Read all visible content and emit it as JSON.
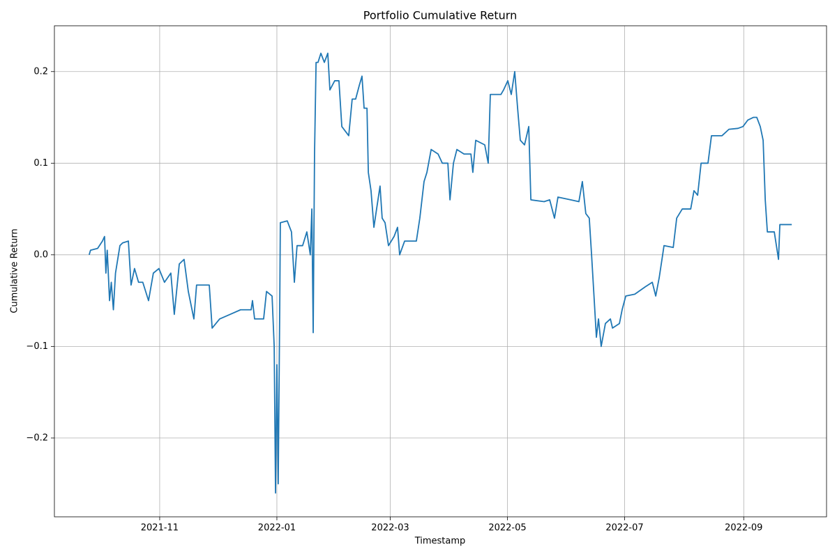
{
  "chart_data": {
    "type": "line",
    "title": "Portfolio Cumulative Return",
    "x_label": "Timestamp",
    "y_label": "Cumulative Return",
    "grid": true,
    "xlim": [
      18877.2,
      19279.1
    ],
    "ylim": [
      -0.286,
      0.25
    ],
    "xticks": [
      {
        "value": 18932,
        "label": "2021-11"
      },
      {
        "value": 18993,
        "label": "2022-01"
      },
      {
        "value": 19052,
        "label": "2022-03"
      },
      {
        "value": 19113,
        "label": "2022-05"
      },
      {
        "value": 19174,
        "label": "2022-07"
      },
      {
        "value": 19236,
        "label": "2022-09"
      }
    ],
    "yticks": [
      {
        "value": -0.2,
        "label": "−0.2"
      },
      {
        "value": -0.1,
        "label": "−0.1"
      },
      {
        "value": 0,
        "label": "0.0"
      },
      {
        "value": 0.1,
        "label": "0.1"
      },
      {
        "value": 0.2,
        "label": "0.2"
      }
    ],
    "x": [
      18895.3,
      18896.0,
      18899.7,
      18902.2,
      18903.3,
      18904.0,
      18904.7,
      18905.9,
      18906.8,
      18907.9,
      18909.0,
      18911.3,
      18912.7,
      18915.7,
      18917.1,
      18918.9,
      18921.0,
      18923.2,
      18926.2,
      18928.7,
      18931.6,
      18934.5,
      18937.8,
      18939.6,
      18942.2,
      18944.7,
      18946.9,
      18949.8,
      18951.2,
      18957.8,
      18959.3,
      18963.2,
      18968.7,
      18974.1,
      18979.6,
      18980.3,
      18981.4,
      18986.1,
      18987.6,
      18990.5,
      18991.6,
      18992.3,
      18993.0,
      18993.7,
      18994.5,
      18994.8,
      18998.4,
      19000.6,
      19002.1,
      19003.5,
      19006.4,
      19008.6,
      19010.4,
      19011.2,
      19011.9,
      19012.6,
      19013.4,
      19014.4,
      19015.9,
      19017.7,
      19019.5,
      19020.6,
      19023.1,
      19025.3,
      19026.8,
      19030.4,
      19032.2,
      19034.0,
      19035.9,
      19037.3,
      19038.4,
      19039.9,
      19040.6,
      19042.0,
      19043.5,
      19044.9,
      19046.7,
      19047.8,
      19049.3,
      19051.1,
      19054.0,
      19055.8,
      19056.9,
      19059.5,
      19065.6,
      19067.4,
      19069.6,
      19071.1,
      19073.3,
      19076.9,
      19079.1,
      19082.0,
      19083.1,
      19084.9,
      19086.7,
      19090.4,
      19094.0,
      19095.0,
      19096.5,
      19101.2,
      19103.0,
      19104.1,
      19109.6,
      19111.0,
      19113.2,
      19115.0,
      19116.8,
      19118.3,
      19119.7,
      19121.9,
      19124.1,
      19125.2,
      19132.1,
      19135.0,
      19137.5,
      19139.3,
      19145.9,
      19150.2,
      19152.0,
      19153.8,
      19155.6,
      19156.8,
      19158.2,
      19159.3,
      19160.4,
      19161.8,
      19164.0,
      19166.6,
      19167.7,
      19171.3,
      19172.7,
      19174.6,
      19179.3,
      19184.7,
      19188.4,
      19190.2,
      19192.0,
      19193.8,
      19194.5,
      19199.3,
      19201.1,
      19204.0,
      19208.4,
      19210.1,
      19212.0,
      19213.8,
      19217.4,
      19219.2,
      19224.7,
      19228.3,
      19233.0,
      19235.6,
      19238.1,
      19241.0,
      19242.8,
      19244.6,
      19246.1,
      19247.2,
      19248.3,
      19251.9,
      19254.1,
      19254.8,
      19261.0
    ],
    "series": [
      {
        "name": "Cumulative Return",
        "color": "#1f77b4",
        "values": [
          0.0,
          0.005,
          0.007,
          0.015,
          0.02,
          -0.02,
          0.005,
          -0.05,
          -0.03,
          -0.06,
          -0.02,
          0.01,
          0.013,
          0.015,
          -0.033,
          -0.015,
          -0.03,
          -0.03,
          -0.05,
          -0.02,
          -0.015,
          -0.03,
          -0.02,
          -0.065,
          -0.01,
          -0.005,
          -0.04,
          -0.07,
          -0.033,
          -0.033,
          -0.08,
          -0.07,
          -0.065,
          -0.06,
          -0.06,
          -0.05,
          -0.07,
          -0.07,
          -0.04,
          -0.045,
          -0.1,
          -0.26,
          -0.12,
          -0.25,
          -0.055,
          0.035,
          0.037,
          0.025,
          -0.03,
          0.01,
          0.01,
          0.025,
          0.0,
          0.05,
          -0.085,
          0.11,
          0.21,
          0.21,
          0.22,
          0.21,
          0.22,
          0.18,
          0.19,
          0.19,
          0.14,
          0.13,
          0.17,
          0.17,
          0.185,
          0.195,
          0.16,
          0.16,
          0.09,
          0.07,
          0.03,
          0.05,
          0.075,
          0.04,
          0.035,
          0.01,
          0.02,
          0.03,
          0.0,
          0.015,
          0.015,
          0.04,
          0.08,
          0.09,
          0.115,
          0.11,
          0.1,
          0.1,
          0.06,
          0.1,
          0.115,
          0.11,
          0.11,
          0.09,
          0.125,
          0.12,
          0.1,
          0.175,
          0.175,
          0.18,
          0.19,
          0.175,
          0.2,
          0.16,
          0.125,
          0.12,
          0.14,
          0.06,
          0.058,
          0.06,
          0.04,
          0.063,
          0.06,
          0.058,
          0.08,
          0.045,
          0.04,
          0.0,
          -0.05,
          -0.09,
          -0.07,
          -0.1,
          -0.075,
          -0.07,
          -0.08,
          -0.075,
          -0.06,
          -0.045,
          -0.043,
          -0.035,
          -0.03,
          -0.045,
          -0.025,
          0.0,
          0.01,
          0.008,
          0.04,
          0.05,
          0.05,
          0.07,
          0.065,
          0.1,
          0.1,
          0.13,
          0.13,
          0.137,
          0.138,
          0.14,
          0.147,
          0.15,
          0.15,
          0.14,
          0.125,
          0.06,
          0.025,
          0.025,
          -0.005,
          0.033,
          0.033
        ]
      }
    ]
  }
}
